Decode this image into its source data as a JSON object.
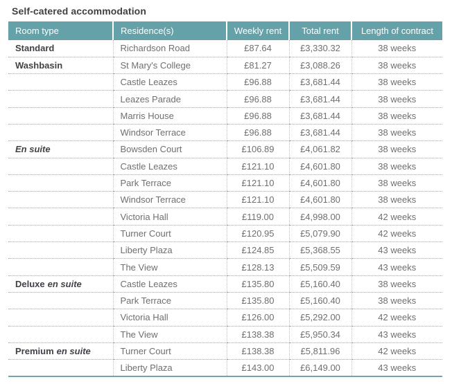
{
  "title": "Self-catered accommodation",
  "colors": {
    "header_bg": "#64a1a9",
    "header_text": "#ffffff",
    "title_text": "#3f4043",
    "room_type_text": "#414247",
    "body_text": "#6e6f72",
    "row_divider": "#a3a3a3",
    "column_divider": "#a6cad0",
    "bottom_border": "#76a2ac"
  },
  "table": {
    "headers": [
      "Room type",
      "Residence(s)",
      "Weekly rent",
      "Total rent",
      "Length of contract"
    ],
    "rows": [
      {
        "room_type_regular": "Standard",
        "room_type_italic": "",
        "residence": "Richardson Road",
        "weekly_rent": "£87.64",
        "total_rent": "£3,330.32",
        "contract_length": "38 weeks"
      },
      {
        "room_type_regular": "Washbasin",
        "room_type_italic": "",
        "residence": "St Mary's College",
        "weekly_rent": "£81.27",
        "total_rent": "£3,088.26",
        "contract_length": "38 weeks"
      },
      {
        "room_type_regular": "",
        "room_type_italic": "",
        "residence": "Castle Leazes",
        "weekly_rent": "£96.88",
        "total_rent": "£3,681.44",
        "contract_length": "38 weeks"
      },
      {
        "room_type_regular": "",
        "room_type_italic": "",
        "residence": "Leazes Parade",
        "weekly_rent": "£96.88",
        "total_rent": "£3,681.44",
        "contract_length": "38 weeks"
      },
      {
        "room_type_regular": "",
        "room_type_italic": "",
        "residence": "Marris House",
        "weekly_rent": "£96.88",
        "total_rent": "£3,681.44",
        "contract_length": "38 weeks"
      },
      {
        "room_type_regular": "",
        "room_type_italic": "",
        "residence": "Windsor Terrace",
        "weekly_rent": "£96.88",
        "total_rent": "£3,681.44",
        "contract_length": "38 weeks"
      },
      {
        "room_type_regular": "",
        "room_type_italic": "En suite",
        "residence": "Bowsden Court",
        "weekly_rent": "£106.89",
        "total_rent": "£4,061.82",
        "contract_length": "38 weeks"
      },
      {
        "room_type_regular": "",
        "room_type_italic": "",
        "residence": "Castle Leazes",
        "weekly_rent": "£121.10",
        "total_rent": "£4,601.80",
        "contract_length": "38 weeks"
      },
      {
        "room_type_regular": "",
        "room_type_italic": "",
        "residence": "Park Terrace",
        "weekly_rent": "£121.10",
        "total_rent": "£4,601.80",
        "contract_length": "38 weeks"
      },
      {
        "room_type_regular": "",
        "room_type_italic": "",
        "residence": "Windsor Terrace",
        "weekly_rent": "£121.10",
        "total_rent": "£4,601.80",
        "contract_length": "38 weeks"
      },
      {
        "room_type_regular": "",
        "room_type_italic": "",
        "residence": "Victoria Hall",
        "weekly_rent": "£119.00",
        "total_rent": "£4,998.00",
        "contract_length": "42 weeks"
      },
      {
        "room_type_regular": "",
        "room_type_italic": "",
        "residence": "Turner Court",
        "weekly_rent": "£120.95",
        "total_rent": "£5,079.90",
        "contract_length": "42 weeks"
      },
      {
        "room_type_regular": "",
        "room_type_italic": "",
        "residence": "Liberty Plaza",
        "weekly_rent": "£124.85",
        "total_rent": "£5,368.55",
        "contract_length": "43 weeks"
      },
      {
        "room_type_regular": "",
        "room_type_italic": "",
        "residence": "The View",
        "weekly_rent": "£128.13",
        "total_rent": "£5,509.59",
        "contract_length": "43 weeks"
      },
      {
        "room_type_regular": "Deluxe",
        "room_type_italic": "en suite",
        "residence": "Castle Leazes",
        "weekly_rent": "£135.80",
        "total_rent": "£5,160.40",
        "contract_length": "38 weeks"
      },
      {
        "room_type_regular": "",
        "room_type_italic": "",
        "residence": "Park Terrace",
        "weekly_rent": "£135.80",
        "total_rent": "£5,160.40",
        "contract_length": "38 weeks"
      },
      {
        "room_type_regular": "",
        "room_type_italic": "",
        "residence": "Victoria Hall",
        "weekly_rent": "£126.00",
        "total_rent": "£5,292.00",
        "contract_length": "42 weeks"
      },
      {
        "room_type_regular": "",
        "room_type_italic": "",
        "residence": "The View",
        "weekly_rent": "£138.38",
        "total_rent": "£5,950.34",
        "contract_length": "43 weeks"
      },
      {
        "room_type_regular": "Premium",
        "room_type_italic": "en suite",
        "residence": "Turner Court",
        "weekly_rent": "£138.38",
        "total_rent": "£5,811.96",
        "contract_length": "42 weeks"
      },
      {
        "room_type_regular": "",
        "room_type_italic": "",
        "residence": "Liberty Plaza",
        "weekly_rent": "£143.00",
        "total_rent": "£6,149.00",
        "contract_length": "43 weeks"
      }
    ]
  }
}
